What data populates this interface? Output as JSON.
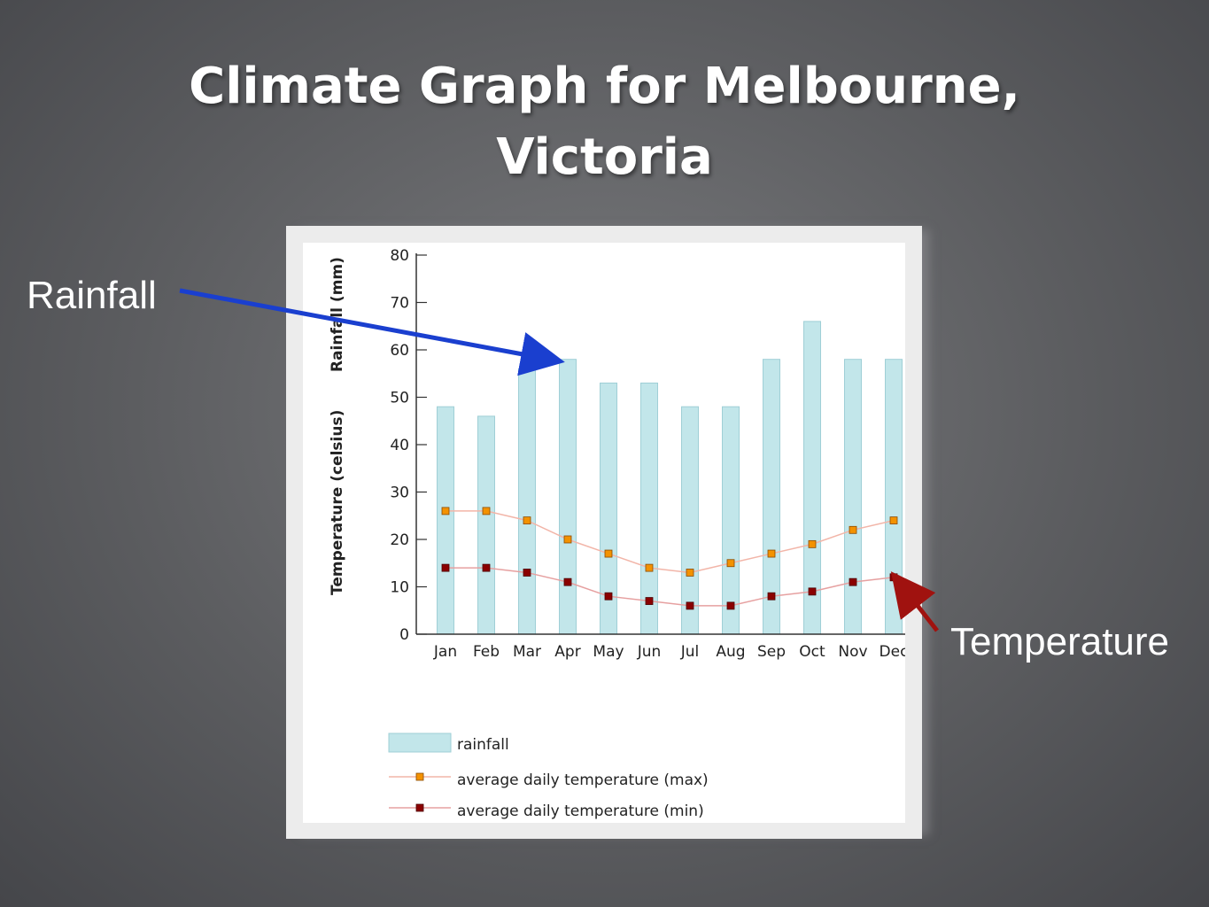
{
  "slide": {
    "title": "Climate Graph for Melbourne, Victoria",
    "callouts": {
      "rainfall": "Rainfall",
      "temperature": "Temperature"
    }
  },
  "chart_data": {
    "type": "bar",
    "categories": [
      "Jan",
      "Feb",
      "Mar",
      "Apr",
      "May",
      "Jun",
      "Jul",
      "Aug",
      "Sep",
      "Oct",
      "Nov",
      "Dec"
    ],
    "series": [
      {
        "name": "rainfall",
        "type": "bar",
        "values": [
          48,
          46,
          56,
          58,
          53,
          53,
          48,
          48,
          58,
          66,
          58,
          58
        ]
      },
      {
        "name": "average daily temperature (max)",
        "type": "line",
        "values": [
          26,
          26,
          24,
          20,
          17,
          14,
          13,
          15,
          17,
          19,
          22,
          24
        ]
      },
      {
        "name": "average daily temperature (min)",
        "type": "line",
        "values": [
          14,
          14,
          13,
          11,
          8,
          7,
          6,
          6,
          8,
          9,
          11,
          12
        ]
      }
    ],
    "y_ticks": [
      0,
      10,
      20,
      30,
      40,
      50,
      60,
      70,
      80
    ],
    "ylim": [
      0,
      80
    ],
    "ylabel_temperature": "Temperature (celsius)",
    "ylabel_rainfall": "Rainfall (mm)",
    "legend_position": "bottom",
    "colors": {
      "bar_fill": "#c2e6ea",
      "bar_stroke": "#9fcfd6",
      "max_line": "#f2b5a8",
      "max_marker": "#f39200",
      "min_line": "#e6a0a0",
      "min_marker": "#8b0000"
    }
  }
}
